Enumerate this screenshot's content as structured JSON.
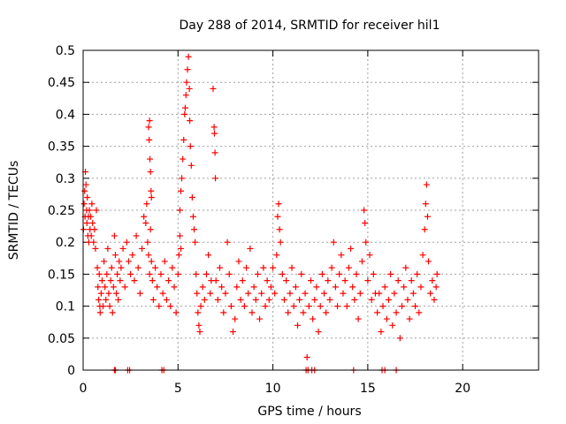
{
  "chart_data": {
    "type": "scatter",
    "title": "Day 288 of 2014, SRMTID for receiver hil1",
    "xlabel": "GPS time / hours",
    "ylabel": "SRMTID / TECUs",
    "xlim": [
      0,
      24
    ],
    "ylim": [
      0,
      0.5
    ],
    "xticks": [
      0,
      5,
      10,
      15,
      20
    ],
    "xtick_labels": [
      "0",
      "5",
      "10",
      "15",
      "20"
    ],
    "yticks": [
      0,
      0.05,
      0.1,
      0.15,
      0.2,
      0.25,
      0.3,
      0.35,
      0.4,
      0.45,
      0.5
    ],
    "ytick_labels": [
      "0",
      "0.05",
      "0.1",
      "0.15",
      "0.2",
      "0.25",
      "0.3",
      "0.35",
      "0.4",
      "0.45",
      "0.5"
    ],
    "grid": true,
    "marker": "+",
    "marker_color": "#ff0000",
    "series": [
      {
        "name": "SRMTID",
        "points": [
          [
            0.02,
            0.22
          ],
          [
            0.05,
            0.26
          ],
          [
            0.08,
            0.28
          ],
          [
            0.1,
            0.24
          ],
          [
            0.12,
            0.31
          ],
          [
            0.15,
            0.29
          ],
          [
            0.18,
            0.25
          ],
          [
            0.2,
            0.23
          ],
          [
            0.22,
            0.27
          ],
          [
            0.25,
            0.21
          ],
          [
            0.28,
            0.24
          ],
          [
            0.3,
            0.2
          ],
          [
            0.33,
            0.25
          ],
          [
            0.36,
            0.22
          ],
          [
            0.4,
            0.24
          ],
          [
            0.43,
            0.21
          ],
          [
            0.46,
            0.26
          ],
          [
            0.5,
            0.23
          ],
          [
            0.55,
            0.2
          ],
          [
            0.6,
            0.22
          ],
          [
            0.65,
            0.19
          ],
          [
            0.7,
            0.25
          ],
          [
            0.75,
            0.16
          ],
          [
            0.78,
            0.13
          ],
          [
            0.82,
            0.11
          ],
          [
            0.85,
            0.15
          ],
          [
            0.88,
            0.1
          ],
          [
            0.9,
            0.09
          ],
          [
            0.95,
            0.12
          ],
          [
            1.0,
            0.14
          ],
          [
            1.05,
            0.1
          ],
          [
            1.1,
            0.17
          ],
          [
            1.15,
            0.13
          ],
          [
            1.2,
            0.11
          ],
          [
            1.25,
            0.15
          ],
          [
            1.3,
            0.19
          ],
          [
            1.35,
            0.12
          ],
          [
            1.4,
            0.1
          ],
          [
            1.45,
            0.14
          ],
          [
            1.5,
            0.16
          ],
          [
            1.55,
            0.09
          ],
          [
            1.6,
            0.13
          ],
          [
            1.65,
            0.21
          ],
          [
            1.7,
            0.18
          ],
          [
            1.75,
            0.12
          ],
          [
            1.8,
            0.15
          ],
          [
            1.85,
            0.11
          ],
          [
            1.9,
            0.17
          ],
          [
            1.95,
            0.14
          ],
          [
            2.0,
            0.16
          ],
          [
            2.1,
            0.19
          ],
          [
            2.2,
            0.13
          ],
          [
            2.3,
            0.2
          ],
          [
            2.4,
            0.17
          ],
          [
            2.5,
            0.15
          ],
          [
            2.6,
            0.18
          ],
          [
            2.7,
            0.14
          ],
          [
            2.8,
            0.21
          ],
          [
            2.9,
            0.16
          ],
          [
            3.0,
            0.12
          ],
          [
            3.1,
            0.19
          ],
          [
            3.2,
            0.24
          ],
          [
            3.3,
            0.23
          ],
          [
            3.35,
            0.26
          ],
          [
            3.4,
            0.2
          ],
          [
            3.45,
            0.18
          ],
          [
            3.5,
            0.15
          ],
          [
            3.55,
            0.22
          ],
          [
            3.6,
            0.17
          ],
          [
            3.45,
            0.38
          ],
          [
            3.5,
            0.39
          ],
          [
            3.48,
            0.36
          ],
          [
            3.52,
            0.33
          ],
          [
            3.55,
            0.31
          ],
          [
            3.58,
            0.28
          ],
          [
            3.6,
            0.27
          ],
          [
            3.65,
            0.14
          ],
          [
            3.7,
            0.11
          ],
          [
            3.8,
            0.16
          ],
          [
            3.9,
            0.13
          ],
          [
            4.0,
            0.1
          ],
          [
            4.1,
            0.15
          ],
          [
            4.2,
            0.12
          ],
          [
            4.3,
            0.17
          ],
          [
            4.4,
            0.11
          ],
          [
            4.5,
            0.14
          ],
          [
            4.6,
            0.1
          ],
          [
            4.7,
            0.16
          ],
          [
            4.8,
            0.13
          ],
          [
            4.9,
            0.09
          ],
          [
            5.0,
            0.15
          ],
          [
            5.05,
            0.18
          ],
          [
            5.1,
            0.21
          ],
          [
            5.15,
            0.19
          ],
          [
            5.1,
            0.25
          ],
          [
            5.15,
            0.28
          ],
          [
            5.2,
            0.3
          ],
          [
            5.25,
            0.33
          ],
          [
            5.3,
            0.36
          ],
          [
            5.35,
            0.4
          ],
          [
            5.38,
            0.41
          ],
          [
            5.42,
            0.43
          ],
          [
            5.45,
            0.45
          ],
          [
            5.5,
            0.47
          ],
          [
            5.55,
            0.49
          ],
          [
            5.6,
            0.44
          ],
          [
            5.62,
            0.39
          ],
          [
            5.65,
            0.35
          ],
          [
            5.7,
            0.32
          ],
          [
            5.75,
            0.27
          ],
          [
            5.8,
            0.24
          ],
          [
            5.85,
            0.22
          ],
          [
            5.9,
            0.2
          ],
          [
            5.95,
            0.15
          ],
          [
            6.0,
            0.12
          ],
          [
            6.05,
            0.09
          ],
          [
            6.1,
            0.07
          ],
          [
            6.15,
            0.06
          ],
          [
            6.2,
            0.1
          ],
          [
            6.3,
            0.13
          ],
          [
            6.4,
            0.11
          ],
          [
            6.5,
            0.15
          ],
          [
            6.6,
            0.18
          ],
          [
            6.7,
            0.12
          ],
          [
            6.75,
            0.14
          ],
          [
            6.85,
            0.44
          ],
          [
            6.9,
            0.38
          ],
          [
            6.92,
            0.37
          ],
          [
            6.95,
            0.34
          ],
          [
            6.97,
            0.3
          ],
          [
            7.0,
            0.14
          ],
          [
            7.1,
            0.11
          ],
          [
            7.2,
            0.16
          ],
          [
            7.3,
            0.13
          ],
          [
            7.4,
            0.09
          ],
          [
            7.5,
            0.12
          ],
          [
            7.6,
            0.2
          ],
          [
            7.7,
            0.15
          ],
          [
            7.8,
            0.1
          ],
          [
            7.9,
            0.06
          ],
          [
            8.0,
            0.08
          ],
          [
            8.1,
            0.13
          ],
          [
            8.2,
            0.17
          ],
          [
            8.3,
            0.11
          ],
          [
            8.4,
            0.14
          ],
          [
            8.5,
            0.1
          ],
          [
            8.6,
            0.16
          ],
          [
            8.7,
            0.12
          ],
          [
            8.8,
            0.19
          ],
          [
            8.9,
            0.09
          ],
          [
            9.0,
            0.13
          ],
          [
            9.1,
            0.11
          ],
          [
            9.2,
            0.15
          ],
          [
            9.3,
            0.08
          ],
          [
            9.4,
            0.12
          ],
          [
            9.5,
            0.16
          ],
          [
            9.6,
            0.1
          ],
          [
            9.7,
            0.14
          ],
          [
            9.8,
            0.11
          ],
          [
            9.9,
            0.13
          ],
          [
            10.0,
            0.16
          ],
          [
            10.1,
            0.12
          ],
          [
            10.2,
            0.18
          ],
          [
            10.25,
            0.24
          ],
          [
            10.3,
            0.26
          ],
          [
            10.35,
            0.22
          ],
          [
            10.4,
            0.2
          ],
          [
            10.5,
            0.15
          ],
          [
            10.6,
            0.11
          ],
          [
            10.7,
            0.14
          ],
          [
            10.8,
            0.09
          ],
          [
            10.9,
            0.12
          ],
          [
            11.0,
            0.16
          ],
          [
            11.1,
            0.1
          ],
          [
            11.2,
            0.13
          ],
          [
            11.3,
            0.07
          ],
          [
            11.4,
            0.11
          ],
          [
            11.5,
            0.15
          ],
          [
            11.6,
            0.09
          ],
          [
            11.7,
            0.12
          ],
          [
            11.8,
            0.02
          ],
          [
            11.9,
            0.1
          ],
          [
            12.0,
            0.14
          ],
          [
            12.1,
            0.08
          ],
          [
            12.2,
            0.11
          ],
          [
            12.3,
            0.13
          ],
          [
            12.4,
            0.06
          ],
          [
            12.5,
            0.1
          ],
          [
            12.6,
            0.15
          ],
          [
            12.7,
            0.12
          ],
          [
            12.8,
            0.09
          ],
          [
            12.9,
            0.14
          ],
          [
            13.0,
            0.11
          ],
          [
            13.1,
            0.16
          ],
          [
            13.2,
            0.2
          ],
          [
            13.3,
            0.13
          ],
          [
            13.4,
            0.1
          ],
          [
            13.5,
            0.15
          ],
          [
            13.6,
            0.18
          ],
          [
            13.7,
            0.12
          ],
          [
            13.8,
            0.14
          ],
          [
            13.9,
            0.1
          ],
          [
            14.0,
            0.16
          ],
          [
            14.1,
            0.19
          ],
          [
            14.2,
            0.13
          ],
          [
            14.3,
            0.11
          ],
          [
            14.4,
            0.15
          ],
          [
            14.5,
            0.08
          ],
          [
            14.6,
            0.12
          ],
          [
            14.7,
            0.17
          ],
          [
            14.8,
            0.25
          ],
          [
            14.85,
            0.23
          ],
          [
            14.9,
            0.2
          ],
          [
            15.0,
            0.14
          ],
          [
            15.1,
            0.18
          ],
          [
            15.2,
            0.11
          ],
          [
            15.3,
            0.15
          ],
          [
            15.4,
            0.12
          ],
          [
            15.5,
            0.09
          ],
          [
            15.6,
            0.12
          ],
          [
            15.7,
            0.06
          ],
          [
            15.8,
            0.1
          ],
          [
            15.9,
            0.13
          ],
          [
            16.0,
            0.08
          ],
          [
            16.1,
            0.11
          ],
          [
            16.2,
            0.15
          ],
          [
            16.3,
            0.07
          ],
          [
            16.4,
            0.12
          ],
          [
            16.5,
            0.09
          ],
          [
            16.6,
            0.14
          ],
          [
            16.7,
            0.05
          ],
          [
            16.8,
            0.1
          ],
          [
            16.9,
            0.13
          ],
          [
            17.0,
            0.16
          ],
          [
            17.1,
            0.11
          ],
          [
            17.2,
            0.08
          ],
          [
            17.3,
            0.14
          ],
          [
            17.4,
            0.12
          ],
          [
            17.5,
            0.1
          ],
          [
            17.6,
            0.15
          ],
          [
            17.7,
            0.09
          ],
          [
            17.8,
            0.13
          ],
          [
            17.9,
            0.18
          ],
          [
            18.0,
            0.22
          ],
          [
            18.05,
            0.26
          ],
          [
            18.1,
            0.29
          ],
          [
            18.15,
            0.24
          ],
          [
            18.2,
            0.17
          ],
          [
            18.3,
            0.12
          ],
          [
            18.4,
            0.14
          ],
          [
            18.5,
            0.11
          ],
          [
            18.6,
            0.13
          ],
          [
            18.65,
            0.15
          ],
          [
            1.65,
            0.0
          ],
          [
            1.7,
            0.0
          ],
          [
            2.35,
            0.0
          ],
          [
            2.45,
            0.0
          ],
          [
            4.15,
            0.0
          ],
          [
            4.25,
            0.0
          ],
          [
            11.75,
            0.0
          ],
          [
            11.85,
            0.0
          ],
          [
            12.05,
            0.0
          ],
          [
            12.2,
            0.0
          ],
          [
            14.25,
            0.0
          ],
          [
            15.75,
            0.0
          ],
          [
            15.9,
            0.0
          ],
          [
            16.5,
            0.0
          ]
        ]
      }
    ]
  }
}
